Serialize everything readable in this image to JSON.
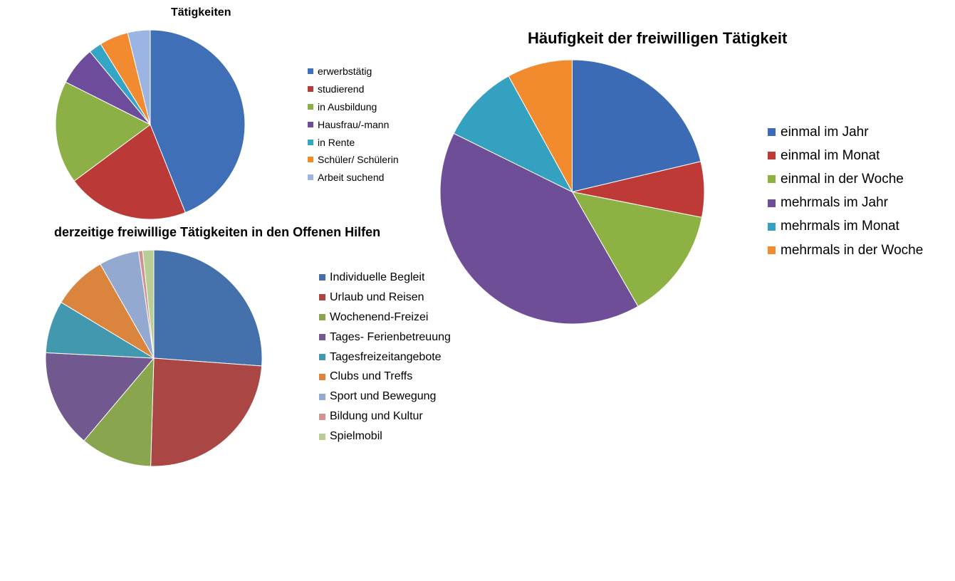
{
  "chart_data": [
    {
      "type": "pie",
      "title": "Tätigkeiten",
      "categories": [
        "erwerbstätig",
        "studierend",
        "in Ausbildung",
        "Hausfrau/-mann",
        "in Rente",
        "Schüler/ Schülerin",
        "Arbeit suchend"
      ],
      "values": [
        40,
        19,
        16,
        6,
        2,
        4.5,
        3.5
      ],
      "colors": [
        "#3F6FB6",
        "#BB3A38",
        "#8CB045",
        "#6E4C9C",
        "#34A5C4",
        "#F28A2F",
        "#9BB4E2"
      ],
      "start_angle": 0,
      "direction": "clockwise",
      "legend": "right"
    },
    {
      "type": "pie",
      "title": "derzeitige freiwillige Tätigkeiten in den Offenen Hilfen",
      "categories": [
        "Individuelle Begleit",
        "Urlaub und Reisen",
        "Wochenend-Freizei",
        "Tages- Ferienbetreuung",
        "Tagesfreizeitangebote",
        "Clubs und Treffs",
        "Sport und Bewegung",
        "Bildung und Kultur",
        "Spielmobil"
      ],
      "values": [
        25.4,
        23.6,
        10.4,
        14.2,
        7.6,
        7.9,
        5.8,
        0.6,
        1.6
      ],
      "colors": [
        "#4470AB",
        "#AA4644",
        "#89A54E",
        "#71588F",
        "#4198AF",
        "#DB843D",
        "#93A9CF",
        "#D19392",
        "#B9CD96"
      ],
      "start_angle": 0,
      "direction": "clockwise",
      "legend": "right"
    },
    {
      "type": "pie",
      "title": "Häufigkeit der freiwilligen Tätigkeit",
      "categories": [
        "einmal im Jahr",
        "einmal im Monat",
        "einmal in der Woche",
        "mehrmals im Jahr",
        "mehrmals im Monat",
        "mehrmals in der Woche"
      ],
      "values": [
        21.3,
        6.8,
        13.6,
        40.6,
        9.7,
        8
      ],
      "colors": [
        "#3A6BB4",
        "#BE3A37",
        "#8DB243",
        "#6E4E96",
        "#33A1BF",
        "#F28A2E"
      ],
      "start_angle": 0,
      "direction": "clockwise",
      "legend": "right"
    }
  ]
}
